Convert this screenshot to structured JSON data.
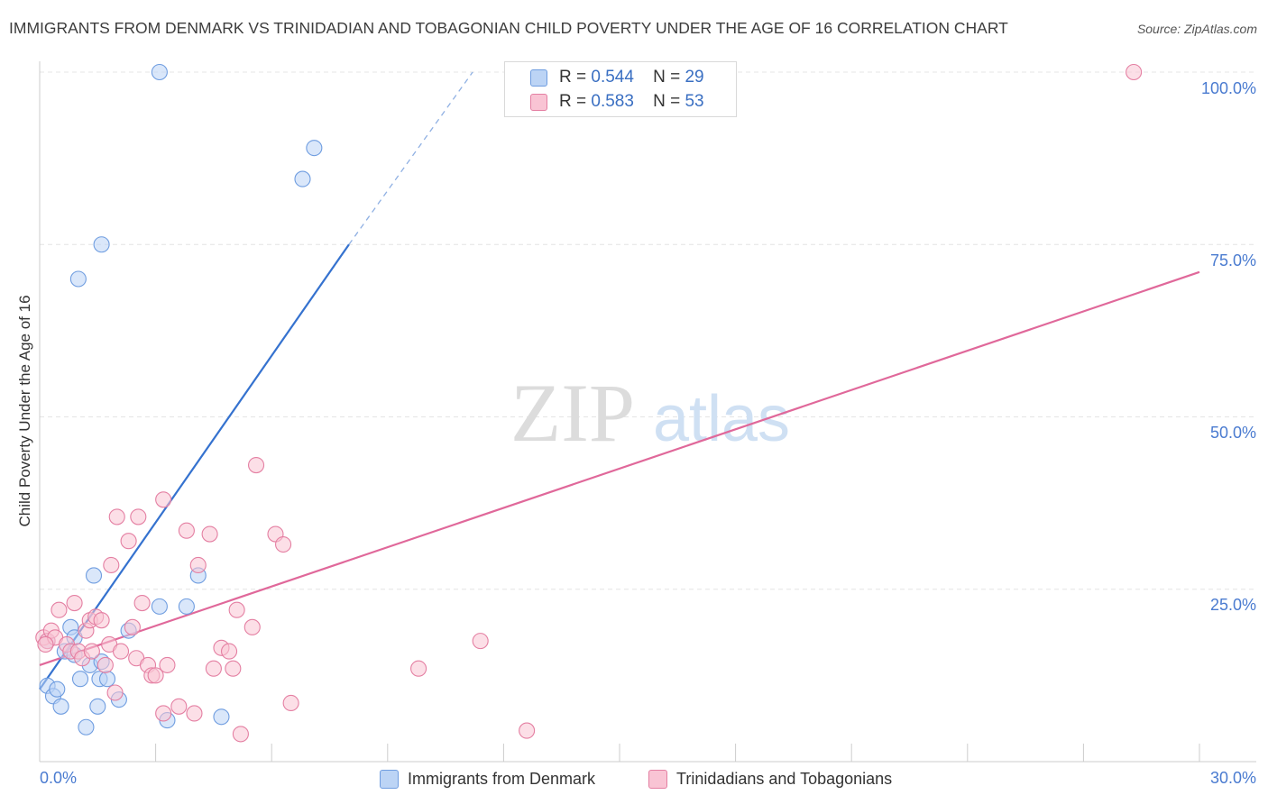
{
  "chart_data": {
    "type": "scatter",
    "title": "IMMIGRANTS FROM DENMARK VS TRINIDADIAN AND TOBAGONIAN CHILD POVERTY UNDER THE AGE OF 16 CORRELATION CHART",
    "source": "Source: ZipAtlas.com",
    "xlabel": "",
    "ylabel": "Child Poverty Under the Age of 16",
    "xlim": [
      0,
      30
    ],
    "ylim": [
      0,
      100
    ],
    "x_tick_labels": [
      "0.0%",
      "30.0%"
    ],
    "y_tick_labels": [
      "100.0%",
      "75.0%",
      "50.0%",
      "25.0%"
    ],
    "watermark": {
      "zip": "ZIP",
      "atlas": "atlas"
    },
    "legend_stats": [
      {
        "r_label": "R =",
        "r_value": "0.544",
        "n_label": "N =",
        "n_value": "29"
      },
      {
        "r_label": "R =",
        "r_value": "0.583",
        "n_label": "N =",
        "n_value": "53"
      }
    ],
    "series": [
      {
        "name": "Immigrants from Denmark",
        "color": "#6f9de0",
        "fill": "#bcd4f5",
        "trend": {
          "x0": 0.0,
          "y0": 10.5,
          "x1": 8.0,
          "y1": 75.0,
          "dash_to_x": 11.2,
          "dash_to_y": 100.0
        },
        "points": [
          [
            0.2,
            17.5
          ],
          [
            0.2,
            11.0
          ],
          [
            0.35,
            9.5
          ],
          [
            0.45,
            10.5
          ],
          [
            0.55,
            8.0
          ],
          [
            0.65,
            16.0
          ],
          [
            0.8,
            19.5
          ],
          [
            0.9,
            15.5
          ],
          [
            1.05,
            12.0
          ],
          [
            1.2,
            5.0
          ],
          [
            1.3,
            14.0
          ],
          [
            1.4,
            27.0
          ],
          [
            1.5,
            8.0
          ],
          [
            1.55,
            12.0
          ],
          [
            1.6,
            14.5
          ],
          [
            1.75,
            12.0
          ],
          [
            2.05,
            9.0
          ],
          [
            2.3,
            19.0
          ],
          [
            3.1,
            100.0
          ],
          [
            3.1,
            22.5
          ],
          [
            3.3,
            6.0
          ],
          [
            3.8,
            22.5
          ],
          [
            4.1,
            27.0
          ],
          [
            4.7,
            6.5
          ],
          [
            6.8,
            84.5
          ],
          [
            7.1,
            89.0
          ],
          [
            1.0,
            70.0
          ],
          [
            1.6,
            75.0
          ],
          [
            0.9,
            18.0
          ]
        ]
      },
      {
        "name": "Trinidadians and Tobagonians",
        "color": "#e47fa2",
        "fill": "#f9c4d4",
        "trend": {
          "x0": 0.0,
          "y0": 14.0,
          "x1": 30.0,
          "y1": 71.0
        },
        "points": [
          [
            0.1,
            18.0
          ],
          [
            0.2,
            17.5
          ],
          [
            0.3,
            19.0
          ],
          [
            0.4,
            18.0
          ],
          [
            0.5,
            22.0
          ],
          [
            0.7,
            17.0
          ],
          [
            0.8,
            16.0
          ],
          [
            0.9,
            23.0
          ],
          [
            1.0,
            16.0
          ],
          [
            1.1,
            15.0
          ],
          [
            1.2,
            19.0
          ],
          [
            1.3,
            20.5
          ],
          [
            1.35,
            16.0
          ],
          [
            1.45,
            21.0
          ],
          [
            1.6,
            20.5
          ],
          [
            1.7,
            14.0
          ],
          [
            1.8,
            17.0
          ],
          [
            1.85,
            28.5
          ],
          [
            1.95,
            10.0
          ],
          [
            2.0,
            35.5
          ],
          [
            2.1,
            16.0
          ],
          [
            2.3,
            32.0
          ],
          [
            2.4,
            19.5
          ],
          [
            2.5,
            15.0
          ],
          [
            2.55,
            35.5
          ],
          [
            2.65,
            23.0
          ],
          [
            2.8,
            14.0
          ],
          [
            2.9,
            12.5
          ],
          [
            3.0,
            12.5
          ],
          [
            3.2,
            7.0
          ],
          [
            3.2,
            38.0
          ],
          [
            3.3,
            14.0
          ],
          [
            3.6,
            8.0
          ],
          [
            3.8,
            33.5
          ],
          [
            4.0,
            7.0
          ],
          [
            4.1,
            28.5
          ],
          [
            4.4,
            33.0
          ],
          [
            4.5,
            13.5
          ],
          [
            4.7,
            16.5
          ],
          [
            4.9,
            16.0
          ],
          [
            5.0,
            13.5
          ],
          [
            5.1,
            22.0
          ],
          [
            5.2,
            4.0
          ],
          [
            5.5,
            19.5
          ],
          [
            5.6,
            43.0
          ],
          [
            6.1,
            33.0
          ],
          [
            6.3,
            31.5
          ],
          [
            6.5,
            8.5
          ],
          [
            9.8,
            13.5
          ],
          [
            11.4,
            17.5
          ],
          [
            12.6,
            4.5
          ],
          [
            28.3,
            100.0
          ],
          [
            0.15,
            17.0
          ]
        ]
      }
    ]
  }
}
